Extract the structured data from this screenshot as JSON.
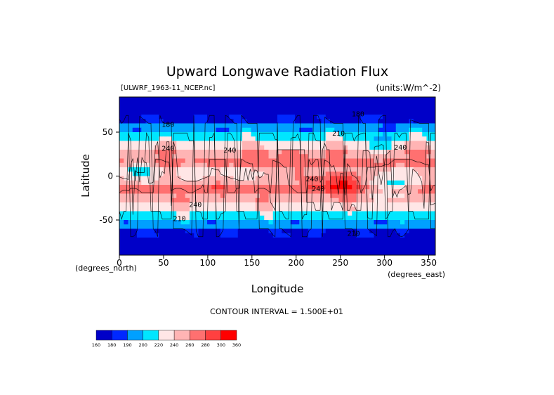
{
  "chart_data": {
    "type": "heatmap",
    "title": "Upward Longwave Radiation Flux",
    "dataset_label": "[ULWRF_1963-11_NCEP.nc]",
    "units_label": "(units:W/m^-2)",
    "xlabel": "Longitude",
    "ylabel": "Latitude",
    "x_units": "(degrees_east)",
    "y_units": "(degrees_north)",
    "xlim": [
      0,
      357.5
    ],
    "ylim": [
      -90,
      90
    ],
    "x_ticks": [
      0,
      50,
      100,
      150,
      200,
      250,
      300,
      350
    ],
    "y_ticks": [
      -50,
      0,
      50
    ],
    "contour_interval_label": "CONTOUR INTERVAL = 1.500E+01",
    "contour_labels": [
      {
        "text": "180",
        "lon": 55,
        "lat": 56
      },
      {
        "text": "240",
        "lon": 125,
        "lat": 27
      },
      {
        "text": "240",
        "lon": 55,
        "lat": 29
      },
      {
        "text": "240",
        "lon": 218,
        "lat": -6
      },
      {
        "text": "240",
        "lon": 225,
        "lat": -17
      },
      {
        "text": "240",
        "lon": 86,
        "lat": -35
      },
      {
        "text": "210",
        "lon": 68,
        "lat": -51
      },
      {
        "text": "210",
        "lon": 265,
        "lat": -68
      },
      {
        "text": "180",
        "lon": 270,
        "lat": 68
      },
      {
        "text": "210",
        "lon": 248,
        "lat": 46
      },
      {
        "text": "240",
        "lon": 318,
        "lat": 30
      }
    ],
    "colorbar": {
      "levels": [
        160,
        180,
        190,
        200,
        220,
        240,
        260,
        280,
        300,
        360
      ],
      "level_labels": [
        "160",
        "180",
        "190",
        "200",
        "220",
        "240",
        "260",
        "280",
        "300",
        "360"
      ],
      "colors": [
        "#0000c8",
        "#0028ff",
        "#00a0ff",
        "#00e6ff",
        "#ffe6e6",
        "#ffb4b4",
        "#ff7070",
        "#ff4040",
        "#ff0000"
      ]
    }
  }
}
